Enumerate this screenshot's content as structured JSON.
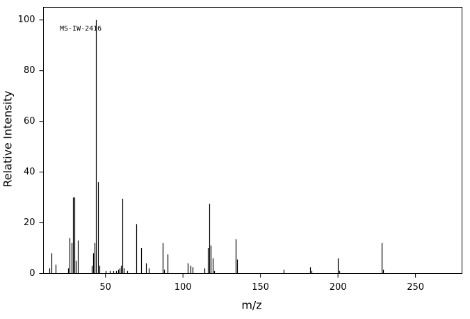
{
  "chart_data": {
    "type": "bar",
    "annotation": "MS-IW-2416",
    "x_label": "m/z",
    "y_label": "Relative Intensity",
    "x": [
      14,
      15,
      18,
      26,
      27,
      28,
      29,
      30,
      31,
      32,
      41,
      42,
      43,
      44,
      45,
      46,
      50,
      53,
      55,
      57,
      58,
      59,
      60,
      61,
      62,
      64,
      70,
      73,
      76,
      78,
      87,
      88,
      90,
      103,
      105,
      106,
      114,
      116,
      117,
      118,
      119,
      120,
      134,
      135,
      165,
      182,
      183,
      200,
      201,
      228,
      229
    ],
    "values": [
      2,
      8,
      3.5,
      2,
      14,
      12,
      30,
      30,
      5,
      13,
      3,
      8,
      12,
      100,
      36,
      3,
      1,
      1,
      1,
      1,
      1.5,
      2,
      3,
      29.5,
      2,
      1,
      19.5,
      10,
      4,
      2,
      12,
      1.5,
      7.5,
      4,
      3,
      2.5,
      2,
      10,
      27.5,
      11,
      6,
      1,
      13.5,
      5.5,
      1.5,
      2.5,
      1,
      6,
      1,
      12,
      1.5
    ],
    "color": "#000000",
    "xlim": [
      10,
      280
    ],
    "xticks": [
      50,
      100,
      150,
      200,
      250
    ],
    "ylim": [
      0,
      105
    ],
    "yticks": [
      0,
      20,
      40,
      60,
      80,
      100
    ]
  }
}
